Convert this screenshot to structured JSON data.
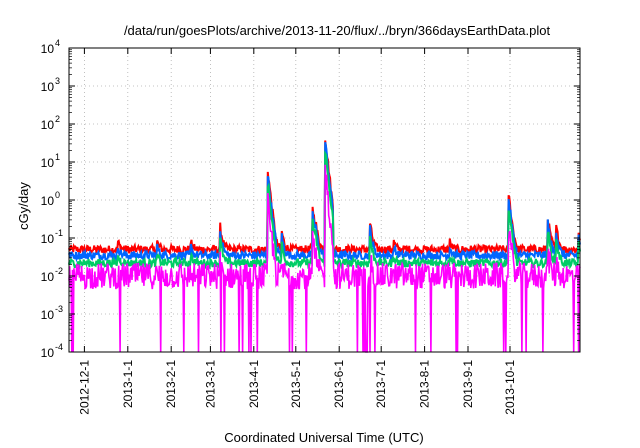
{
  "chart_data": {
    "type": "line",
    "title": "/data/run/goesPlots/archive/2013-11-20/flux/../bryn/366daysEarthData.plot",
    "xlabel": "Coordinated Universal Time (UTC)",
    "ylabel": "cGy/day",
    "yscale": "log",
    "ylim": [
      0.0001,
      10000
    ],
    "y_ticks": [
      {
        "base": "10",
        "exp": "-4"
      },
      {
        "base": "10",
        "exp": "-3"
      },
      {
        "base": "10",
        "exp": "-2"
      },
      {
        "base": "10",
        "exp": "-1"
      },
      {
        "base": "10",
        "exp": "0"
      },
      {
        "base": "10",
        "exp": "1"
      },
      {
        "base": "10",
        "exp": "2"
      },
      {
        "base": "10",
        "exp": "3"
      },
      {
        "base": "10",
        "exp": "4"
      }
    ],
    "x_range": [
      "2012-11-20",
      "2013-11-20"
    ],
    "x_ticks": [
      "2012-12-1",
      "2013-1-1",
      "2013-2-1",
      "2013-3-1",
      "2013-4-1",
      "2013-5-1",
      "2013-6-1",
      "2013-7-1",
      "2013-8-1",
      "2013-9-1",
      "2013-10-1"
    ],
    "x_tick_dates": [
      "2012-12-01",
      "2013-01-01",
      "2013-02-01",
      "2013-03-01",
      "2013-04-01",
      "2013-05-01",
      "2013-06-01",
      "2013-07-01",
      "2013-08-01",
      "2013-09-01",
      "2013-10-01"
    ],
    "grid": true,
    "legend": "none",
    "events": [
      {
        "date": "2012-12-25",
        "peak": 0.08
      },
      {
        "date": "2013-01-22",
        "peak": 0.08
      },
      {
        "date": "2013-02-15",
        "peak": 0.08
      },
      {
        "date": "2013-03-08",
        "peak": 0.2
      },
      {
        "date": "2013-04-11",
        "peak": 6
      },
      {
        "date": "2013-04-16",
        "peak": 0.12
      },
      {
        "date": "2013-04-21",
        "peak": 0.15
      },
      {
        "date": "2013-05-13",
        "peak": 0.7
      },
      {
        "date": "2013-05-15",
        "peak": 0.3
      },
      {
        "date": "2013-05-22",
        "peak": 45
      },
      {
        "date": "2013-06-23",
        "peak": 0.25
      },
      {
        "date": "2013-07-10",
        "peak": 0.08
      },
      {
        "date": "2013-08-19",
        "peak": 0.08
      },
      {
        "date": "2013-09-30",
        "peak": 1.5
      },
      {
        "date": "2013-10-28",
        "peak": 0.35
      },
      {
        "date": "2013-11-03",
        "peak": 0.2
      },
      {
        "date": "2013-11-19",
        "peak": 0.15
      }
    ],
    "series": [
      {
        "color": "#ff0000",
        "baseline": 0.05
      },
      {
        "color": "#0066ff",
        "baseline": 0.035
      },
      {
        "color": "#00cc66",
        "baseline": 0.022
      },
      {
        "color": "#ff00ff",
        "baseline": 0.01,
        "floor": 0.0023
      }
    ]
  }
}
